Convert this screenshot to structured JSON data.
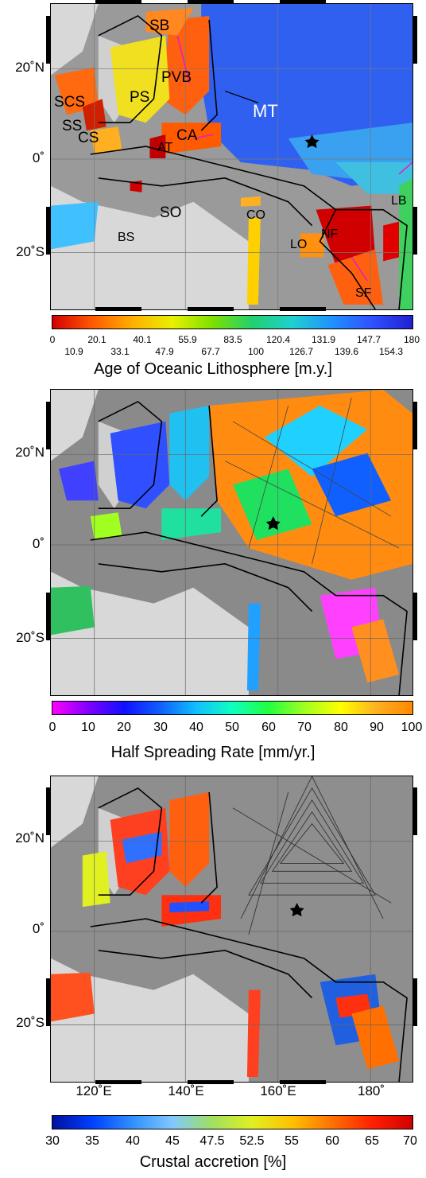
{
  "panels": [
    {
      "labels": {
        "sb": "SB",
        "pvb": "PVB",
        "ps": "PS",
        "scs": "SCS",
        "ss": "SS",
        "mt": "MT",
        "cs": "CS",
        "ca": "CA",
        "at": "AT",
        "so": "SO",
        "co": "CO",
        "bs": "BS",
        "lb": "LB",
        "nf": "NF",
        "lo": "LO",
        "sf": "SF"
      },
      "colorbar": {
        "title": "Age of Oceanic Lithosphere [m.y.]",
        "ticks_top": [
          "0",
          "20.1",
          "40.1",
          "55.9",
          "83.5",
          "120.4",
          "131.9",
          "147.7",
          "180"
        ],
        "ticks_bottom": [
          "10.9",
          "33.1",
          "47.9",
          "67.7",
          "100",
          "126.7",
          "139.6",
          "154.3"
        ],
        "colors": [
          "#d40000",
          "#ff5a00",
          "#ffb000",
          "#e8f000",
          "#7de000",
          "#22d070",
          "#20d0d0",
          "#2090ff",
          "#3050ff",
          "#2020d0"
        ]
      }
    },
    {
      "colorbar": {
        "title": "Half Spreading Rate [mm/yr.]",
        "ticks": [
          "0",
          "10",
          "20",
          "30",
          "40",
          "50",
          "60",
          "70",
          "80",
          "90",
          "100"
        ],
        "colors": [
          "#ff00ff",
          "#8000ff",
          "#1010ff",
          "#1060ff",
          "#10c0ff",
          "#10ffc0",
          "#20ff40",
          "#a0ff20",
          "#ffff00",
          "#ffb020",
          "#ff8800"
        ]
      }
    },
    {
      "colorbar": {
        "title": "Crustal accretion [%]",
        "ticks": [
          "30",
          "35",
          "40",
          "45",
          "47.5",
          "52.5",
          "55",
          "60",
          "65",
          "70"
        ],
        "colors": [
          "#0010a0",
          "#0040ff",
          "#3090ff",
          "#80c8ff",
          "#a0e060",
          "#e0f020",
          "#ffc000",
          "#ff7000",
          "#ff2000",
          "#d00000"
        ]
      }
    }
  ],
  "axes": {
    "lat_labels": [
      "20˚N",
      "0˚",
      "20˚S"
    ],
    "lon_labels": [
      "120˚E",
      "140˚E",
      "160˚E",
      "180˚"
    ]
  },
  "colors": {
    "land": "#c8c8c8",
    "ocean_gray": "#909090",
    "plate_boundary": "#000000",
    "ridge_magenta": "#e020c0"
  }
}
